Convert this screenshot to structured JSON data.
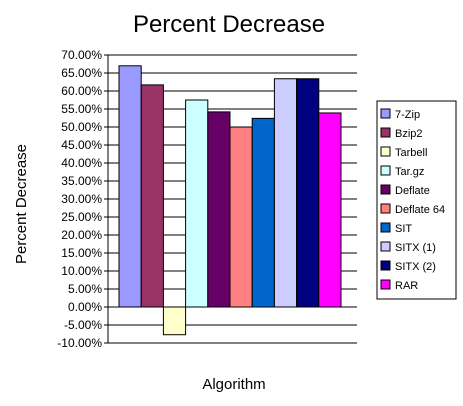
{
  "chart_data": {
    "type": "bar",
    "title": "Percent Decrease",
    "xlabel": "Algorithm",
    "ylabel": "Percent Decrease",
    "ylim": [
      -10,
      70
    ],
    "y_tick_step": 5,
    "y_tick_labels": [
      "70.00%",
      "65.00%",
      "60.00%",
      "55.00%",
      "50.00%",
      "45.00%",
      "40.00%",
      "35.00%",
      "30.00%",
      "25.00%",
      "20.00%",
      "15.00%",
      "10.00%",
      "5.00%",
      "0.00%",
      "-5.00%",
      "-10.00%"
    ],
    "grid": true,
    "legend_position": "right",
    "categories": [
      ""
    ],
    "series": [
      {
        "name": "7-Zip",
        "values": [
          67.0
        ],
        "color": "#9999FF"
      },
      {
        "name": "Bzip2",
        "values": [
          61.7
        ],
        "color": "#993366"
      },
      {
        "name": "Tarbell",
        "values": [
          -7.7
        ],
        "color": "#FFFFCC"
      },
      {
        "name": "Tar.gz",
        "values": [
          57.5
        ],
        "color": "#CCFFFF"
      },
      {
        "name": "Deflate",
        "values": [
          54.2
        ],
        "color": "#660066"
      },
      {
        "name": "Deflate 64",
        "values": [
          50.0
        ],
        "color": "#FF8080"
      },
      {
        "name": "SIT",
        "values": [
          52.4
        ],
        "color": "#0066CC"
      },
      {
        "name": "SITX (1)",
        "values": [
          63.4
        ],
        "color": "#CCCCFF"
      },
      {
        "name": "SITX (2)",
        "values": [
          63.4
        ],
        "color": "#000080"
      },
      {
        "name": "RAR",
        "values": [
          53.9
        ],
        "color": "#FF00FF"
      }
    ]
  }
}
